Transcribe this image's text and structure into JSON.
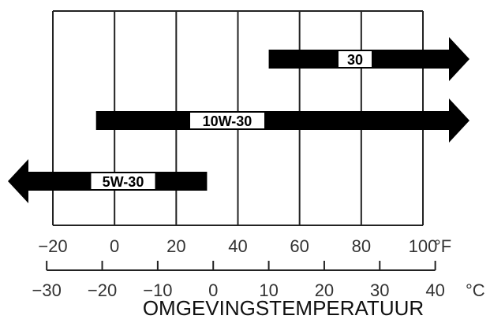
{
  "diagram": {
    "axis_title": "OMGEVINGSTEMPERATUUR",
    "fahrenheit_unit": "°F",
    "celsius_unit": "°C"
  },
  "chart_data": {
    "type": "bar",
    "xlabel": "OMGEVINGSTEMPERATUUR",
    "x_unit_primary": "°F",
    "x_unit_secondary": "°C",
    "xlim_f": [
      -20,
      100
    ],
    "grid": true,
    "fahrenheit_ticks": [
      "−20",
      "0",
      "20",
      "40",
      "60",
      "80",
      "100"
    ],
    "fahrenheit_tick_values": [
      -20,
      0,
      20,
      40,
      60,
      80,
      100
    ],
    "celsius_ticks": [
      "−30",
      "−20",
      "−10",
      "0",
      "10",
      "20",
      "30",
      "40"
    ],
    "celsius_tick_values": [
      -30,
      -20,
      -10,
      0,
      10,
      20,
      30,
      40
    ],
    "series": [
      {
        "name": "30",
        "from_f": 50,
        "to_f": 120,
        "open_end": "right"
      },
      {
        "name": "10W-30",
        "from_f": -6,
        "to_f": 120,
        "open_end": "right"
      },
      {
        "name": "5W-30",
        "from_f": -40,
        "to_f": 30,
        "open_end": "left"
      }
    ]
  }
}
